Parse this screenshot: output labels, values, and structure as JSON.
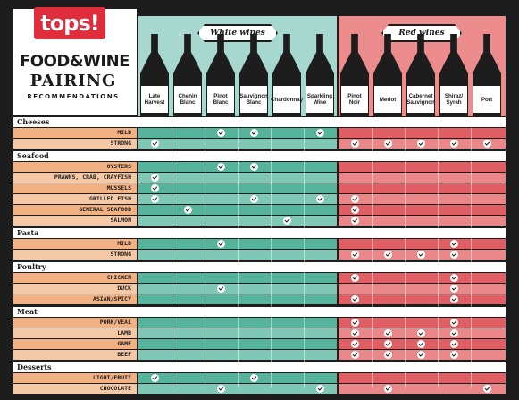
{
  "brand": {
    "logo_text": "tops!"
  },
  "title": {
    "line1": "FOOD&WINE",
    "line2": "PAIRING",
    "line3": "RECOMMENDATIONS"
  },
  "groups": {
    "white": "White wines",
    "red": "Red wines"
  },
  "wines": [
    {
      "label": "Late\nHarvest",
      "group": "white"
    },
    {
      "label": "Chenin\nBlanc",
      "group": "white"
    },
    {
      "label": "Pinot\nBlanc",
      "group": "white"
    },
    {
      "label": "Sauvignon\nBlanc",
      "group": "white"
    },
    {
      "label": "Chardonnay",
      "group": "white"
    },
    {
      "label": "Sparkling\nWine",
      "group": "white"
    },
    {
      "label": "Pinot\nNoir",
      "group": "red"
    },
    {
      "label": "Merlot",
      "group": "red"
    },
    {
      "label": "Cabernet\nSauvignon",
      "group": "red"
    },
    {
      "label": "Shiraz/\nSyrah",
      "group": "red"
    },
    {
      "label": "Port",
      "group": "red"
    }
  ],
  "colors": {
    "white_light": "#a6d8d0",
    "white_row": "#56b39c",
    "white_row_alt": "#7ec8b5",
    "red_light": "#ec8c8c",
    "red_row": "#e05f64",
    "red_row_alt": "#ea8889",
    "label_row": "#f2b183",
    "label_row_alt": "#f6c9a6",
    "background": "#1d1d1d",
    "logo": "#e02d3c"
  },
  "categories": [
    {
      "name": "Cheeses",
      "items": [
        {
          "name": "MILD",
          "pairs": [
            2,
            3,
            5
          ]
        },
        {
          "name": "STRONG",
          "pairs": [
            0,
            6,
            7,
            8,
            9,
            10
          ]
        }
      ]
    },
    {
      "name": "Seafood",
      "items": [
        {
          "name": "OYSTERS",
          "pairs": [
            2,
            3
          ]
        },
        {
          "name": "PRAWNS, CRAB, CRAYFISH",
          "pairs": [
            0
          ]
        },
        {
          "name": "MUSSELS",
          "pairs": [
            0
          ]
        },
        {
          "name": "GRILLED FISH",
          "pairs": [
            0,
            3,
            5,
            6
          ]
        },
        {
          "name": "GENERAL SEAFOOD",
          "pairs": [
            1,
            6
          ]
        },
        {
          "name": "SALMON",
          "pairs": [
            4,
            6
          ]
        }
      ]
    },
    {
      "name": "Pasta",
      "items": [
        {
          "name": "MILD",
          "pairs": [
            2,
            9
          ]
        },
        {
          "name": "STRONG",
          "pairs": [
            6,
            7,
            8,
            9
          ]
        }
      ]
    },
    {
      "name": "Poultry",
      "items": [
        {
          "name": "CHICKEN",
          "pairs": [
            6,
            9
          ]
        },
        {
          "name": "DUCK",
          "pairs": [
            2,
            9
          ]
        },
        {
          "name": "ASIAN/SPICY",
          "pairs": [
            6,
            9
          ]
        }
      ]
    },
    {
      "name": "Meat",
      "items": [
        {
          "name": "PORK/VEAL",
          "pairs": [
            6,
            9
          ]
        },
        {
          "name": "LAMB",
          "pairs": [
            6,
            7,
            8,
            9
          ]
        },
        {
          "name": "GAME",
          "pairs": [
            6,
            7,
            8,
            9
          ]
        },
        {
          "name": "BEEF",
          "pairs": [
            6,
            7,
            8,
            9
          ]
        }
      ]
    },
    {
      "name": "Desserts",
      "items": [
        {
          "name": "LIGHT/FRUIT",
          "pairs": [
            0,
            3
          ]
        },
        {
          "name": "CHOCOLATE",
          "pairs": [
            2,
            5,
            7,
            10
          ]
        }
      ]
    }
  ]
}
